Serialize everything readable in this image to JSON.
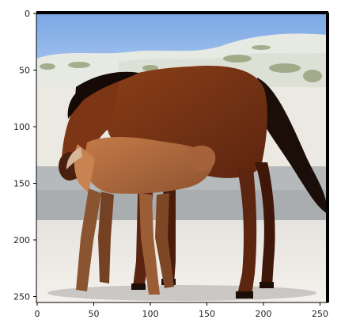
{
  "image": {
    "description_tag": "photo-horses-beach",
    "x_ticks": [
      "0",
      "50",
      "100",
      "150",
      "200",
      "250"
    ],
    "y_ticks": [
      "0",
      "50",
      "100",
      "150",
      "200",
      "250"
    ],
    "colors": {
      "sky": "#8fb4ea",
      "dune": "#e9ece4",
      "sand": "#eeebe5",
      "water": "#b9bcbe",
      "mare": "#7a3415",
      "foal": "#b06a3e",
      "mane": "#1a0c08"
    }
  }
}
